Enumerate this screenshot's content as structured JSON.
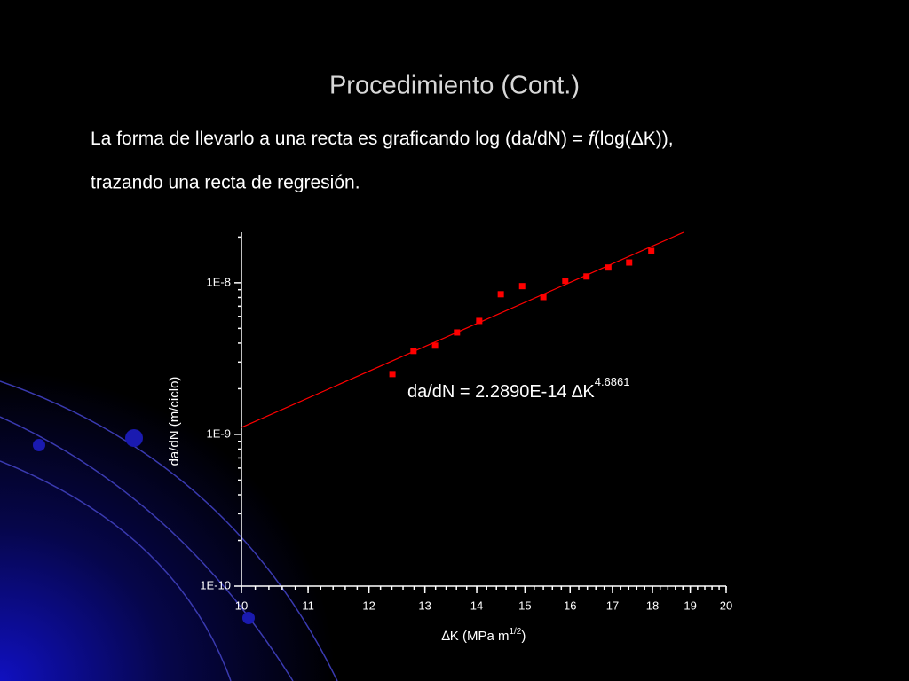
{
  "slide": {
    "title": "Procedimiento (Cont.)",
    "body": [
      {
        "before": "La forma de llevarlo a una recta es graficando log (da/dN) = ",
        "italic": "f",
        "after": "(log(ΔK)),"
      },
      "trazando una recta de regresión."
    ]
  },
  "chart_data": {
    "type": "scatter",
    "x": [
      12.41,
      12.79,
      13.19,
      13.61,
      14.05,
      14.49,
      14.94,
      15.4,
      15.89,
      16.38,
      16.9,
      17.41,
      17.97
    ],
    "values": [
      2.5e-09,
      3.55e-09,
      3.85e-09,
      4.7e-09,
      5.6e-09,
      8.4e-09,
      9.5e-09,
      8.05e-09,
      1.03e-08,
      1.1e-08,
      1.26e-08,
      1.36e-08,
      1.62e-08
    ],
    "color": "#ff0000",
    "xlim": [
      10,
      20
    ],
    "xticks": [
      10,
      11,
      12,
      13,
      14,
      15,
      16,
      17,
      18,
      19,
      20
    ],
    "x_log": true,
    "ylim": [
      1e-10,
      2.15e-08
    ],
    "y_log": true,
    "yticks": [
      {
        "value": 1e-10,
        "label": "1E-10"
      },
      {
        "value": 1e-09,
        "label": "1E-9"
      },
      {
        "value": 1e-08,
        "label": "1E-8"
      }
    ],
    "y_label": "da/dN (m/ciclo)",
    "x_label": [
      "∆K (MPa m",
      "1/2",
      ")"
    ],
    "fit": {
      "label": "da/dN = 2.2890E-14 ∆K",
      "exponent_label": "4.6861",
      "coefficient": 2.289e-14,
      "exponent": 4.6861,
      "color": "#ff0000"
    }
  }
}
